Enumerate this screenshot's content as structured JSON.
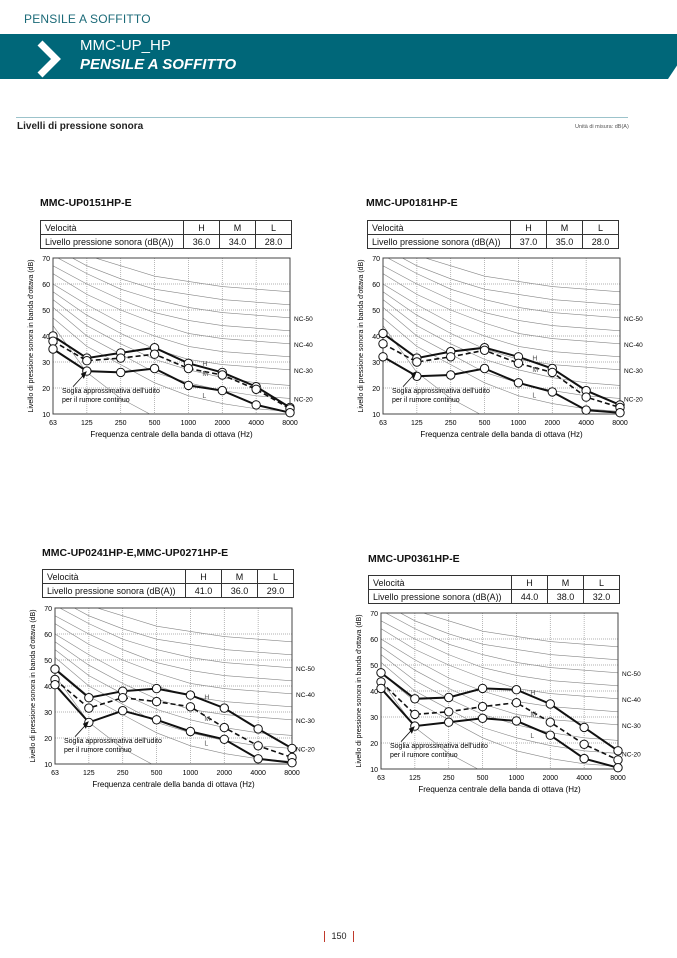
{
  "header": {
    "section": "PENSILE A SOFFITTO",
    "model": "MMC-UP_HP",
    "title": "PENSILE A SOFFITTO",
    "accent": "#006779"
  },
  "section": {
    "title": "Livelli di pressione sonora",
    "unit_note": "Unità di misura: dB(A)"
  },
  "table_labels": {
    "speed": "Velocità",
    "level": "Livello pressione sonora (dB(A))",
    "H": "H",
    "M": "M",
    "L": "L"
  },
  "chart_data": [
    {
      "type": "line",
      "title": "MMC-UP0151HP-E",
      "table": {
        "H": "36.0",
        "M": "34.0",
        "L": "28.0"
      },
      "categories": [
        "63",
        "125",
        "250",
        "500",
        "1000",
        "2000",
        "4000",
        "8000"
      ],
      "yticks": [
        "70",
        "60",
        "50",
        "40",
        "30",
        "20",
        "10"
      ],
      "ylabel": "Livello di pressione sonora in banda d'ottava (dB)",
      "xlabel": "Frequenza centrale della banda di ottava (Hz)",
      "ylim": [
        10,
        70
      ],
      "series": [
        {
          "name": "H",
          "values": [
            40,
            31.5,
            33.5,
            35.5,
            29.5,
            26,
            20.5,
            12.5
          ]
        },
        {
          "name": "M",
          "values": [
            38,
            30.5,
            31.5,
            33,
            27.5,
            25,
            19.5,
            12
          ]
        },
        {
          "name": "L",
          "values": [
            35,
            26.5,
            26,
            27.5,
            21,
            19,
            13.5,
            10.5
          ]
        }
      ]
    },
    {
      "type": "line",
      "title": "MMC-UP0181HP-E",
      "table": {
        "H": "37.0",
        "M": "35.0",
        "L": "28.0"
      },
      "categories": [
        "63",
        "125",
        "250",
        "500",
        "1000",
        "2000",
        "4000",
        "8000"
      ],
      "yticks": [
        "70",
        "60",
        "50",
        "40",
        "30",
        "20",
        "10"
      ],
      "ylabel": "Livello di pressione sonora in banda d'ottava (dB)",
      "xlabel": "Frequenza centrale della banda di ottava (Hz)",
      "ylim": [
        10,
        70
      ],
      "series": [
        {
          "name": "H",
          "values": [
            41,
            31.5,
            34,
            35.5,
            32,
            27.5,
            19,
            13.5
          ]
        },
        {
          "name": "M",
          "values": [
            37,
            30,
            32,
            34.5,
            29.5,
            26,
            16.5,
            12.5
          ]
        },
        {
          "name": "L",
          "values": [
            32,
            24.5,
            25,
            27.5,
            22,
            18.5,
            11.5,
            10.5
          ]
        }
      ]
    },
    {
      "type": "line",
      "title": "MMC-UP0241HP-E,MMC-UP0271HP-E",
      "table": {
        "H": "41.0",
        "M": "36.0",
        "L": "29.0"
      },
      "categories": [
        "63",
        "125",
        "250",
        "500",
        "1000",
        "2000",
        "4000",
        "8000"
      ],
      "yticks": [
        "70",
        "60",
        "50",
        "40",
        "30",
        "20",
        "10"
      ],
      "ylabel": "Livello di pressione sonora in banda d'ottava (dB)",
      "xlabel": "Frequenza centrale della banda di ottava (Hz)",
      "ylim": [
        10,
        70
      ],
      "series": [
        {
          "name": "H",
          "values": [
            46.5,
            35.5,
            38,
            39,
            36.5,
            31.5,
            23.5,
            16
          ]
        },
        {
          "name": "M",
          "values": [
            42.5,
            31.5,
            35.5,
            34,
            32,
            24,
            17,
            12.5
          ]
        },
        {
          "name": "L",
          "values": [
            40.5,
            26,
            30.5,
            27,
            22.5,
            19.5,
            12,
            10.5
          ]
        }
      ]
    },
    {
      "type": "line",
      "title": "MMC-UP0361HP-E",
      "table": {
        "H": "44.0",
        "M": "38.0",
        "L": "32.0"
      },
      "categories": [
        "63",
        "125",
        "250",
        "500",
        "1000",
        "2000",
        "4000",
        "8000"
      ],
      "yticks": [
        "70",
        "60",
        "50",
        "40",
        "30",
        "20",
        "10"
      ],
      "ylabel": "Livello di pressione sonora in banda d'ottava (dB)",
      "xlabel": "Frequenza centrale della banda di ottava (Hz)",
      "ylim": [
        10,
        70
      ],
      "series": [
        {
          "name": "H",
          "values": [
            47,
            37,
            37.5,
            41,
            40.5,
            35,
            26,
            17
          ]
        },
        {
          "name": "M",
          "values": [
            43.5,
            31,
            32,
            34,
            35.5,
            28,
            19.5,
            13.5
          ]
        },
        {
          "name": "L",
          "values": [
            41,
            26.5,
            28,
            29.5,
            28.5,
            23,
            14,
            10.5
          ]
        }
      ]
    }
  ],
  "nc_reference": {
    "labels": [
      "NC-50",
      "NC-40",
      "NC-30",
      "NC-20"
    ],
    "curves": [
      [
        47,
        36,
        29,
        22,
        17,
        14,
        12,
        11
      ],
      [
        51,
        40,
        33,
        26,
        22,
        19,
        17,
        16
      ],
      [
        54,
        44,
        37,
        31,
        27,
        24,
        22,
        21
      ],
      [
        57,
        48,
        41,
        35,
        31,
        29,
        28,
        27
      ],
      [
        60,
        52,
        45,
        40,
        36,
        34,
        33,
        32
      ],
      [
        64,
        56,
        50,
        45,
        41,
        39,
        38,
        37
      ],
      [
        67,
        60,
        54,
        49,
        46,
        44,
        43,
        42
      ],
      [
        71,
        64,
        58,
        54,
        51,
        49,
        48,
        47
      ],
      [
        74,
        67,
        62,
        58,
        56,
        54,
        53,
        52
      ],
      [
        77,
        71,
        67,
        63,
        61,
        59,
        58,
        57
      ]
    ],
    "threshold_note": [
      "Soglia approssimativa dell'udito",
      "per il rumore continuo"
    ]
  },
  "footer": {
    "page": "150"
  }
}
